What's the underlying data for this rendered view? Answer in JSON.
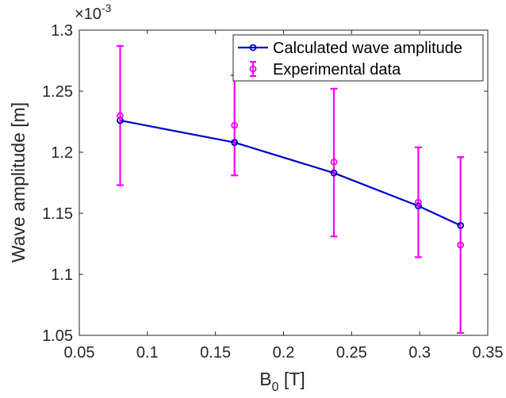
{
  "chart_data": {
    "type": "line",
    "xlabel": "B",
    "xlabel_sub": "0",
    "xlabel_unit": " [T]",
    "ylabel": "Wave amplitude [m]",
    "y_multiplier": {
      "base": "×10",
      "exponent": "-3"
    },
    "xlim": [
      0.05,
      0.35
    ],
    "ylim": [
      1.05,
      1.3
    ],
    "x_ticks": [
      0.05,
      0.1,
      0.15,
      0.2,
      0.25,
      0.3,
      0.35
    ],
    "x_tick_labels": [
      "0.05",
      "0.1",
      "0.15",
      "0.2",
      "0.25",
      "0.3",
      "0.35"
    ],
    "y_ticks": [
      1.05,
      1.1,
      1.15,
      1.2,
      1.25,
      1.3
    ],
    "y_tick_labels": [
      "1.05",
      "1.1",
      "1.15",
      "1.2",
      "1.25",
      "1.3"
    ],
    "grid": false,
    "legend_position": "top-right",
    "series": [
      {
        "name": "Calculated wave amplitude",
        "kind": "line-marker",
        "color": "#0000cc",
        "x": [
          0.08,
          0.164,
          0.237,
          0.299,
          0.33
        ],
        "y": [
          1.226,
          1.208,
          1.183,
          1.156,
          1.14
        ]
      },
      {
        "name": "Experimental data",
        "kind": "errorbar",
        "color": "#ff00ff",
        "x": [
          0.08,
          0.164,
          0.237,
          0.299,
          0.33
        ],
        "y": [
          1.23,
          1.222,
          1.192,
          1.159,
          1.124
        ],
        "y_lower": [
          1.173,
          1.181,
          1.131,
          1.114,
          1.052
        ],
        "y_upper": [
          1.287,
          1.263,
          1.252,
          1.204,
          1.196
        ]
      }
    ]
  }
}
